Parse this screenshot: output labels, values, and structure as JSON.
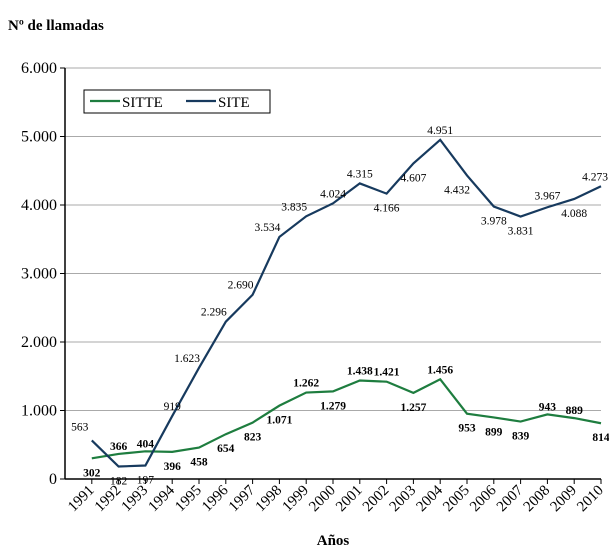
{
  "chart_data": {
    "type": "line",
    "title": "Nº de llamadas",
    "x_label": "Años",
    "categories": [
      "1991",
      "1992",
      "1993",
      "1994",
      "1995",
      "1996",
      "1997",
      "1998",
      "1999",
      "2000",
      "2001",
      "2002",
      "2003",
      "2004",
      "2005",
      "2006",
      "2007",
      "2008",
      "2009",
      "2010"
    ],
    "series": [
      {
        "name": "SITTE",
        "color": "#1e7d3f",
        "values": [
          302,
          366,
          404,
          396,
          458,
          654,
          823,
          1071,
          1262,
          1279,
          1438,
          1421,
          1257,
          1456,
          953,
          899,
          839,
          943,
          889,
          814
        ],
        "value_labels": [
          "302",
          "366",
          "404",
          "396",
          "458",
          "654",
          "823",
          "1.071",
          "1.262",
          "1.279",
          "1.438",
          "1.421",
          "1.257",
          "1.456",
          "953",
          "899",
          "839",
          "943",
          "889",
          "814"
        ]
      },
      {
        "name": "SITE",
        "color": "#173a5e",
        "values": [
          563,
          182,
          197,
          919,
          1623,
          2296,
          2690,
          3534,
          3835,
          4024,
          4315,
          4166,
          4607,
          4951,
          4432,
          3978,
          3831,
          3967,
          4088,
          4273
        ],
        "value_labels": [
          "563",
          "182",
          "197",
          "919",
          "1.623",
          "2.296",
          "2.690",
          "3.534",
          "3.835",
          "4.024",
          "4.315",
          "4.166",
          "4.607",
          "4.951",
          "4.432",
          "3.978",
          "3.831",
          "3.967",
          "4.088",
          "4.273"
        ]
      }
    ],
    "ylim": [
      0,
      6000
    ],
    "yticks": [
      0,
      {
        "value": 1000,
        "label": "1.000"
      },
      {
        "value": 2000,
        "label": "2.000"
      },
      {
        "value": 3000,
        "label": "3.000"
      },
      {
        "value": 4000,
        "label": "4.000"
      },
      {
        "value": 5000,
        "label": "5.000"
      },
      {
        "value": 6000,
        "label": "6.000"
      }
    ],
    "grid": true,
    "legend": "top-left"
  }
}
